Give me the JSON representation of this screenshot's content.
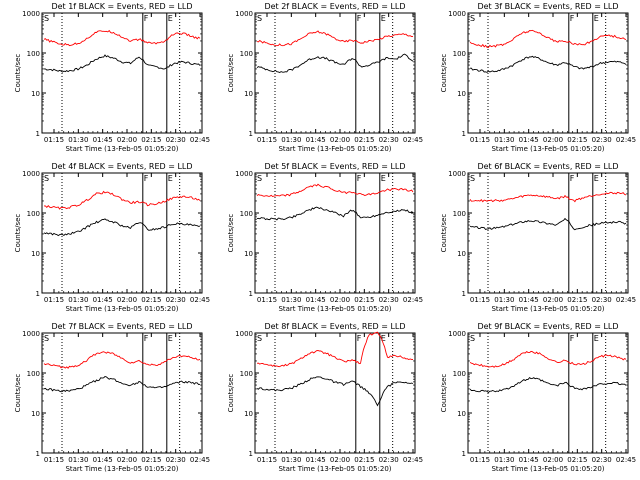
{
  "chart_data": [
    {
      "type": "line",
      "title": "Det 1f BLACK = Events, RED = LLD",
      "ylabel": "Counts/sec",
      "xlabel": "Start Time (13-Feb-05 01:05:20)",
      "x_ticks": [
        "01:15",
        "01:30",
        "01:45",
        "02:00",
        "02:15",
        "02:30",
        "02:45"
      ],
      "y_ticks": [
        "1",
        "10",
        "100",
        "1000"
      ],
      "ylim": [
        1,
        1000
      ],
      "markers": [
        "S",
        "F",
        "E"
      ],
      "series": [
        {
          "name": "Events",
          "color": "#000000",
          "values": [
            40,
            38,
            35,
            36,
            40,
            50,
            70,
            85,
            75,
            60,
            55,
            80,
            48,
            45,
            40,
            55,
            60,
            55,
            50
          ]
        },
        {
          "name": "LLD",
          "color": "#ff0000",
          "values": [
            220,
            190,
            165,
            160,
            175,
            230,
            330,
            360,
            330,
            250,
            200,
            220,
            180,
            175,
            200,
            300,
            310,
            260,
            230
          ]
        }
      ]
    },
    {
      "type": "line",
      "title": "Det 2f BLACK = Events, RED = LLD",
      "ylabel": "Counts/sec",
      "xlabel": "Start Time (13-Feb-05 01:05:20)",
      "x_ticks": [
        "01:15",
        "01:30",
        "01:45",
        "02:00",
        "02:15",
        "02:30",
        "02:45"
      ],
      "y_ticks": [
        "1",
        "10",
        "100",
        "1000"
      ],
      "ylim": [
        1,
        1000
      ],
      "markers": [
        "S",
        "F",
        "E"
      ],
      "series": [
        {
          "name": "Events",
          "color": "#000000",
          "values": [
            45,
            40,
            35,
            33,
            38,
            50,
            68,
            80,
            72,
            58,
            50,
            75,
            45,
            50,
            60,
            75,
            70,
            90,
            65
          ]
        },
        {
          "name": "LLD",
          "color": "#ff0000",
          "values": [
            200,
            180,
            160,
            160,
            170,
            220,
            300,
            340,
            300,
            230,
            190,
            210,
            180,
            200,
            220,
            260,
            280,
            300,
            260
          ]
        }
      ]
    },
    {
      "type": "line",
      "title": "Det 3f BLACK = Events, RED = LLD",
      "ylabel": "Counts/sec",
      "xlabel": "Start Time (13-Feb-05 01:05:20)",
      "x_ticks": [
        "01:15",
        "01:30",
        "01:45",
        "02:00",
        "02:15",
        "02:30",
        "02:45"
      ],
      "y_ticks": [
        "1",
        "10",
        "100",
        "1000"
      ],
      "ylim": [
        1,
        1000
      ],
      "markers": [
        "S",
        "F",
        "E"
      ],
      "series": [
        {
          "name": "Events",
          "color": "#000000",
          "values": [
            40,
            37,
            34,
            35,
            40,
            50,
            68,
            82,
            72,
            57,
            50,
            58,
            45,
            40,
            45,
            55,
            60,
            60,
            55
          ]
        },
        {
          "name": "LLD",
          "color": "#ff0000",
          "values": [
            180,
            160,
            145,
            150,
            165,
            220,
            320,
            360,
            320,
            240,
            190,
            200,
            170,
            160,
            190,
            260,
            280,
            250,
            220
          ]
        }
      ]
    },
    {
      "type": "line",
      "title": "Det 4f BLACK = Events, RED = LLD",
      "ylabel": "Counts/sec",
      "xlabel": "Start Time (13-Feb-05 01:05:20)",
      "x_ticks": [
        "01:15",
        "01:30",
        "01:45",
        "02:00",
        "02:15",
        "02:30",
        "02:45"
      ],
      "y_ticks": [
        "1",
        "10",
        "100",
        "1000"
      ],
      "ylim": [
        1,
        1000
      ],
      "markers": [
        "S",
        "F",
        "E"
      ],
      "series": [
        {
          "name": "Events",
          "color": "#000000",
          "values": [
            32,
            30,
            28,
            30,
            34,
            45,
            58,
            68,
            60,
            48,
            42,
            60,
            38,
            40,
            45,
            55,
            52,
            50,
            45
          ]
        },
        {
          "name": "LLD",
          "color": "#ff0000",
          "values": [
            150,
            140,
            130,
            140,
            160,
            210,
            300,
            330,
            290,
            220,
            180,
            190,
            160,
            170,
            200,
            240,
            260,
            240,
            210
          ]
        }
      ]
    },
    {
      "type": "line",
      "title": "Det 5f BLACK = Events, RED = LLD",
      "ylabel": "Counts/sec",
      "xlabel": "Start Time (13-Feb-05 01:05:20)",
      "x_ticks": [
        "01:15",
        "01:30",
        "01:45",
        "02:00",
        "02:15",
        "02:30",
        "02:45"
      ],
      "y_ticks": [
        "1",
        "10",
        "100",
        "1000"
      ],
      "ylim": [
        1,
        1000
      ],
      "markers": [
        "S",
        "F",
        "E"
      ],
      "series": [
        {
          "name": "Events",
          "color": "#000000",
          "values": [
            75,
            72,
            70,
            72,
            78,
            95,
            120,
            135,
            120,
            100,
            85,
            120,
            75,
            80,
            90,
            105,
            110,
            120,
            100
          ]
        },
        {
          "name": "LLD",
          "color": "#ff0000",
          "values": [
            280,
            270,
            260,
            270,
            290,
            350,
            450,
            500,
            450,
            370,
            320,
            340,
            290,
            290,
            320,
            380,
            400,
            380,
            350
          ]
        }
      ]
    },
    {
      "type": "line",
      "title": "Det 6f BLACK = Events, RED = LLD",
      "ylabel": "Counts/sec",
      "xlabel": "Start Time (13-Feb-05 01:05:20)",
      "x_ticks": [
        "01:15",
        "01:30",
        "01:45",
        "02:00",
        "02:15",
        "02:30",
        "02:45"
      ],
      "y_ticks": [
        "1",
        "10",
        "100",
        "1000"
      ],
      "ylim": [
        1,
        1000
      ],
      "markers": [
        "S",
        "F",
        "E"
      ],
      "series": [
        {
          "name": "Events",
          "color": "#000000",
          "values": [
            45,
            43,
            40,
            42,
            46,
            52,
            60,
            65,
            60,
            55,
            50,
            70,
            40,
            45,
            50,
            55,
            58,
            60,
            55
          ]
        },
        {
          "name": "LLD",
          "color": "#ff0000",
          "values": [
            210,
            205,
            200,
            205,
            210,
            230,
            260,
            280,
            270,
            250,
            230,
            260,
            200,
            240,
            270,
            300,
            310,
            320,
            300
          ]
        }
      ]
    },
    {
      "type": "line",
      "title": "Det 7f BLACK = Events, RED = LLD",
      "ylabel": "Counts/sec",
      "xlabel": "Start Time (13-Feb-05 01:05:20)",
      "x_ticks": [
        "01:15",
        "01:30",
        "01:45",
        "02:00",
        "02:15",
        "02:30",
        "02:45"
      ],
      "y_ticks": [
        "1",
        "10",
        "100",
        "1000"
      ],
      "ylim": [
        1,
        1000
      ],
      "markers": [
        "S",
        "F",
        "E"
      ],
      "series": [
        {
          "name": "Events",
          "color": "#000000",
          "values": [
            40,
            38,
            35,
            36,
            40,
            50,
            65,
            78,
            70,
            55,
            50,
            60,
            45,
            42,
            45,
            55,
            60,
            58,
            52
          ]
        },
        {
          "name": "LLD",
          "color": "#ff0000",
          "values": [
            170,
            155,
            140,
            140,
            160,
            210,
            300,
            340,
            300,
            230,
            180,
            200,
            160,
            160,
            190,
            250,
            270,
            240,
            210
          ]
        }
      ]
    },
    {
      "type": "line",
      "title": "Det 8f BLACK = Events, RED = LLD",
      "ylabel": "Counts/sec",
      "xlabel": "Start Time (13-Feb-05 01:05:20)",
      "x_ticks": [
        "01:15",
        "01:30",
        "01:45",
        "02:00",
        "02:15",
        "02:30",
        "02:45"
      ],
      "y_ticks": [
        "1",
        "10",
        "100",
        "1000"
      ],
      "ylim": [
        1,
        1000
      ],
      "markers": [
        "S",
        "F",
        "E"
      ],
      "series": [
        {
          "name": "Events",
          "color": "#000000",
          "values": [
            42,
            40,
            37,
            38,
            42,
            52,
            68,
            80,
            72,
            58,
            52,
            62,
            45,
            30,
            15,
            45,
            58,
            60,
            55
          ]
        },
        {
          "name": "LLD",
          "color": "#ff0000",
          "values": [
            180,
            165,
            150,
            150,
            170,
            220,
            310,
            350,
            310,
            240,
            190,
            210,
            170,
            900,
            1000,
            250,
            270,
            240,
            210
          ]
        }
      ]
    },
    {
      "type": "line",
      "title": "Det 9f BLACK = Events, RED = LLD",
      "ylabel": "Counts/sec",
      "xlabel": "Start Time (13-Feb-05 01:05:20)",
      "x_ticks": [
        "01:15",
        "01:30",
        "01:45",
        "02:00",
        "02:15",
        "02:30",
        "02:45"
      ],
      "y_ticks": [
        "1",
        "10",
        "100",
        "1000"
      ],
      "ylim": [
        1,
        1000
      ],
      "markers": [
        "S",
        "F",
        "E"
      ],
      "series": [
        {
          "name": "Events",
          "color": "#000000",
          "values": [
            38,
            36,
            34,
            35,
            38,
            48,
            62,
            75,
            68,
            54,
            48,
            58,
            42,
            40,
            44,
            52,
            56,
            55,
            50
          ]
        },
        {
          "name": "LLD",
          "color": "#ff0000",
          "values": [
            175,
            160,
            145,
            145,
            165,
            215,
            305,
            345,
            305,
            235,
            185,
            205,
            165,
            165,
            195,
            255,
            275,
            245,
            215
          ]
        }
      ]
    }
  ]
}
